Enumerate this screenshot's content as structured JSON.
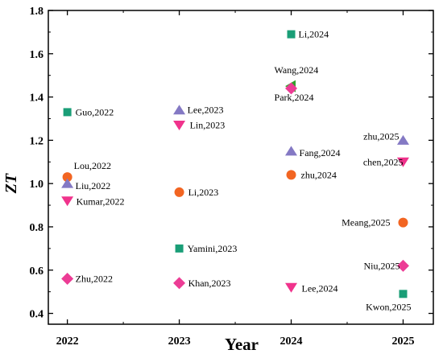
{
  "chart_data": {
    "type": "scatter",
    "xlabel": "Year",
    "ylabel": "ZT",
    "x_ticks": [
      "2022",
      "2023",
      "2024",
      "2025"
    ],
    "y_ticks": [
      "0.4",
      "0.6",
      "0.8",
      "1.0",
      "1.2",
      "1.4",
      "1.6",
      "1.8"
    ],
    "xlim": [
      2021.83,
      2025.27
    ],
    "ylim": [
      0.35,
      1.8
    ],
    "grid": false,
    "colors": {
      "square": "#1a9e77",
      "circle": "#f26522",
      "triangle_up": "#8479c4",
      "triangle_down": "#f0338c",
      "diamond": "#ec3c95",
      "triangle_left": "#33a02c"
    },
    "points": [
      {
        "label": "Guo,2022",
        "x": 2022,
        "y": 1.33,
        "marker": "square"
      },
      {
        "label": "Lou,2022",
        "x": 2022,
        "y": 1.03,
        "marker": "circle"
      },
      {
        "label": "Liu,2022",
        "x": 2022,
        "y": 1.0,
        "marker": "triangle_up"
      },
      {
        "label": "Kumar,2022",
        "x": 2022,
        "y": 0.92,
        "marker": "triangle_down"
      },
      {
        "label": "Zhu,2022",
        "x": 2022,
        "y": 0.56,
        "marker": "diamond"
      },
      {
        "label": "Lee,2023",
        "x": 2023,
        "y": 1.34,
        "marker": "triangle_up"
      },
      {
        "label": "Lin,2023",
        "x": 2023,
        "y": 1.27,
        "marker": "triangle_down"
      },
      {
        "label": "Li,2023",
        "x": 2023,
        "y": 0.96,
        "marker": "circle"
      },
      {
        "label": "Yamini,2023",
        "x": 2023,
        "y": 0.7,
        "marker": "square"
      },
      {
        "label": "Khan,2023",
        "x": 2023,
        "y": 0.54,
        "marker": "diamond"
      },
      {
        "label": "Li,2024",
        "x": 2024,
        "y": 1.69,
        "marker": "square"
      },
      {
        "label": "Wang,2024",
        "x": 2024,
        "y": 1.45,
        "marker": "triangle_left"
      },
      {
        "label": "Park,2024",
        "x": 2024,
        "y": 1.44,
        "marker": "diamond"
      },
      {
        "label": "Fang,2024",
        "x": 2024,
        "y": 1.15,
        "marker": "triangle_up"
      },
      {
        "label": "zhu,2024",
        "x": 2024,
        "y": 1.04,
        "marker": "circle"
      },
      {
        "label": "Lee,2024",
        "x": 2024,
        "y": 0.52,
        "marker": "triangle_down"
      },
      {
        "label": "zhu,2025",
        "x": 2025,
        "y": 1.2,
        "marker": "triangle_up"
      },
      {
        "label": "chen,2025",
        "x": 2025,
        "y": 1.1,
        "marker": "triangle_down"
      },
      {
        "label": "Meang,2025",
        "x": 2025,
        "y": 0.82,
        "marker": "circle"
      },
      {
        "label": "Niu,2025",
        "x": 2025,
        "y": 0.62,
        "marker": "diamond"
      },
      {
        "label": "Kwon,2025",
        "x": 2025,
        "y": 0.49,
        "marker": "square"
      }
    ]
  }
}
